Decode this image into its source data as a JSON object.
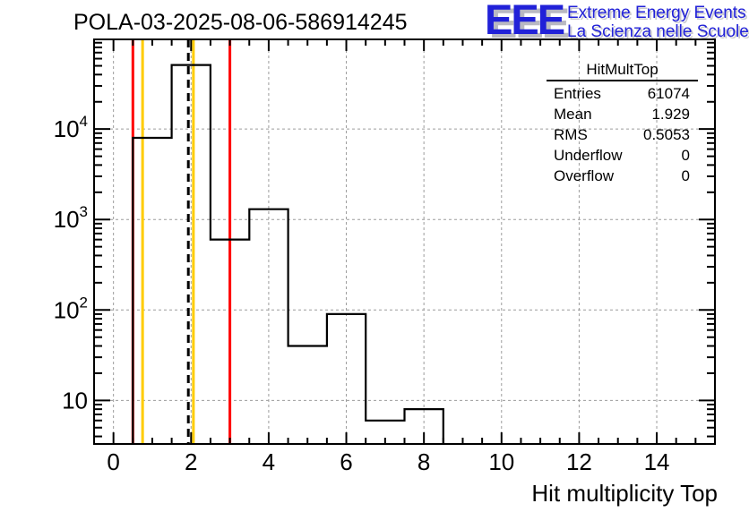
{
  "header": {
    "title": "POLA-03-2025-08-06-586914245"
  },
  "logo": {
    "acronym": "EEE",
    "line1": "Extreme Energy Events",
    "line2": "La Scienza nelle Scuole",
    "color": "#2121d8"
  },
  "stats": {
    "title": "HitMultTop",
    "rows": [
      {
        "label": "Entries",
        "value": "61074"
      },
      {
        "label": "Mean",
        "value": "1.929"
      },
      {
        "label": "RMS",
        "value": "0.5053"
      },
      {
        "label": "Underflow",
        "value": "0"
      },
      {
        "label": "Overflow",
        "value": "0"
      }
    ]
  },
  "chart_data": {
    "type": "bar",
    "subtype": "step-histogram",
    "title": "POLA-03-2025-08-06-586914245",
    "xlabel": "Hit multiplicity Top",
    "ylabel": "",
    "bin_centers": [
      1,
      2,
      3,
      4,
      5,
      6,
      7,
      8
    ],
    "bin_width": 1,
    "counts": [
      8000,
      51030,
      600,
      1300,
      40,
      90,
      6,
      8
    ],
    "entries": 61074,
    "mean": 1.929,
    "rms": 0.5053,
    "underflow": 0,
    "overflow": 0,
    "xlim": [
      -0.5,
      15.5
    ],
    "ylim": [
      3.3,
      98000
    ],
    "yscale": "log",
    "x_major_ticks": [
      0,
      2,
      4,
      6,
      8,
      10,
      12,
      14
    ],
    "x_minor_step": 0.5,
    "y_decade_exponents": [
      1,
      2,
      3,
      4
    ],
    "grid": true,
    "grid_color": "#9c9c9c",
    "line_color": "#000000",
    "frame_color": "#000000",
    "marker_lines": [
      {
        "x": 0.5,
        "color": "#ff0000",
        "style": "solid",
        "name": "red-threshold-low"
      },
      {
        "x": 0.75,
        "color": "#ffcc00",
        "style": "solid",
        "name": "yellow-threshold-low"
      },
      {
        "x": 1.929,
        "color": "#000000",
        "style": "dashed",
        "name": "mean-line"
      },
      {
        "x": 2.06,
        "color": "#ffcc00",
        "style": "solid",
        "name": "yellow-threshold-high"
      },
      {
        "x": 3.0,
        "color": "#ff0000",
        "style": "solid",
        "name": "red-threshold-high"
      }
    ]
  }
}
